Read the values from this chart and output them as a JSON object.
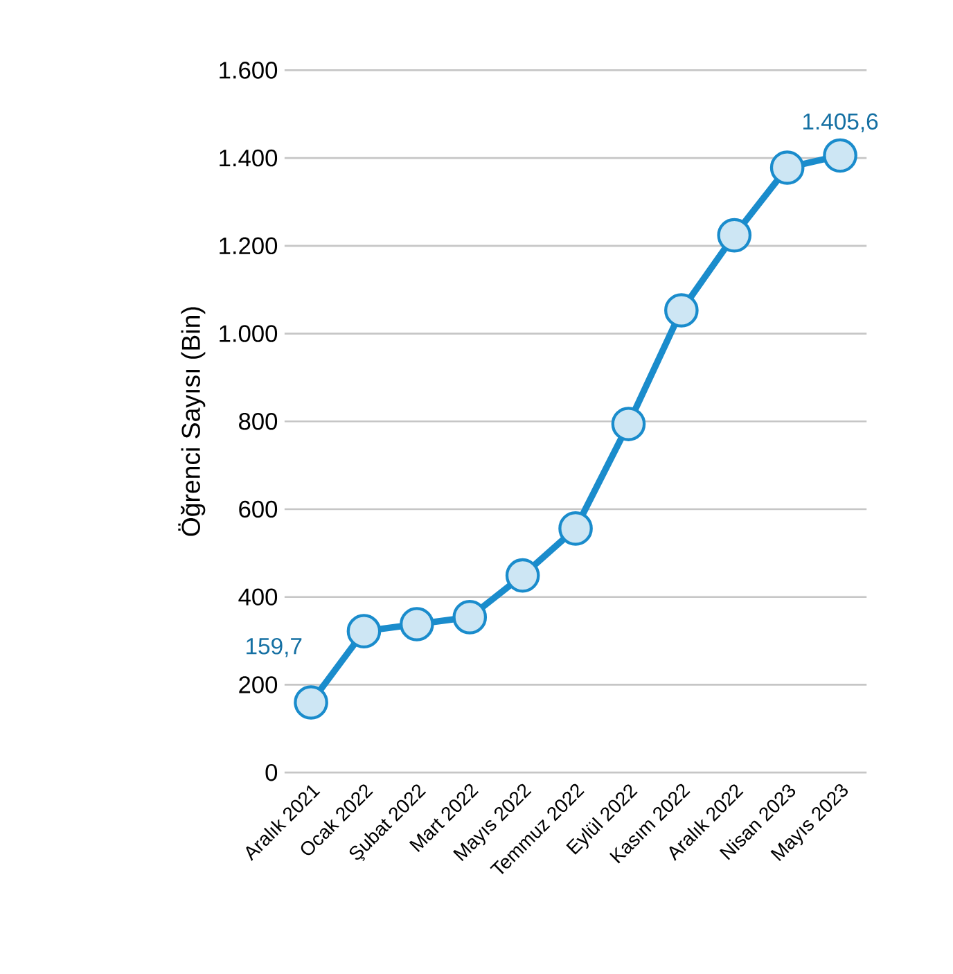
{
  "chart_data": {
    "type": "line",
    "ylabel": "Öğrenci Sayısı (Bin)",
    "categories": [
      "Aralık 2021",
      "Ocak 2022",
      "Şubat 2022",
      "Mart 2022",
      "Mayıs 2022",
      "Temmuz 2022",
      "Eylül 2022",
      "Kasım 2022",
      "Aralık 2022",
      "Nisan 2023",
      "Mayıs 2023"
    ],
    "values": [
      159.7,
      322,
      338,
      354,
      449,
      556,
      794,
      1053,
      1224,
      1378,
      1405.6
    ],
    "value_labels": [
      "159,7",
      null,
      null,
      null,
      null,
      null,
      null,
      null,
      null,
      null,
      "1.405,6"
    ],
    "color": "#1a8ccc",
    "marker": "circle",
    "line_style": "solid",
    "grid": "y",
    "ylim": [
      0,
      1600
    ],
    "yticks": [
      {
        "value": 0,
        "label": "0"
      },
      {
        "value": 200,
        "label": "200"
      },
      {
        "value": 400,
        "label": "400"
      },
      {
        "value": 600,
        "label": "600"
      },
      {
        "value": 800,
        "label": "800"
      },
      {
        "value": 1000,
        "label": "1.000"
      },
      {
        "value": 1200,
        "label": "1.200"
      },
      {
        "value": 1400,
        "label": "1.400"
      },
      {
        "value": 1600,
        "label": "1.600"
      }
    ]
  }
}
